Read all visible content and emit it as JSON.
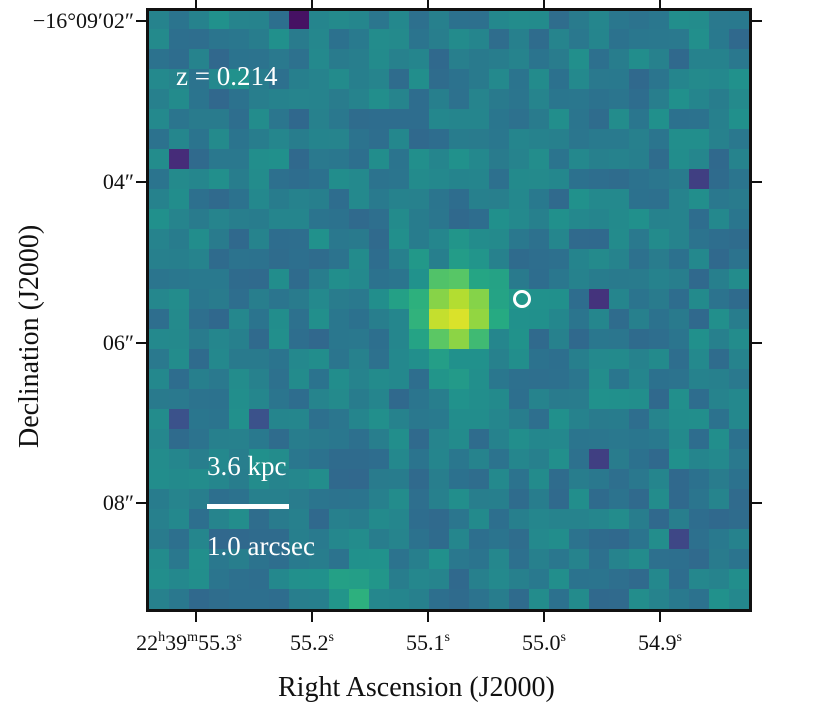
{
  "image": {
    "colormap": "viridis",
    "colors": {
      "background": "#2e8a8b",
      "hotspot": "#f0e524",
      "dark_pixel": "#3b1556",
      "frame": "#111111",
      "overlay_text": "#ffffff"
    }
  },
  "overlays": {
    "redshift_label": "z = 0.214",
    "scale_physical": "3.6 kpc",
    "scale_angular": "1.0 arcsec"
  },
  "axes": {
    "y_title": "Declination (J2000)",
    "x_title": "Right Ascension (J2000)",
    "y_ticks": [
      {
        "label": "−16°09′02″"
      },
      {
        "label": "04″"
      },
      {
        "label": "06″"
      },
      {
        "label": "08″"
      }
    ],
    "x_ticks": [
      {
        "h": "22",
        "m": "39",
        "value": "55.3",
        "unit": "s"
      },
      {
        "value": "55.2",
        "unit": "s"
      },
      {
        "value": "55.1",
        "unit": "s"
      },
      {
        "value": "55.0",
        "unit": "s"
      },
      {
        "value": "54.9",
        "unit": "s"
      }
    ],
    "ra_hour_unit": "h",
    "ra_min_unit": "m"
  }
}
